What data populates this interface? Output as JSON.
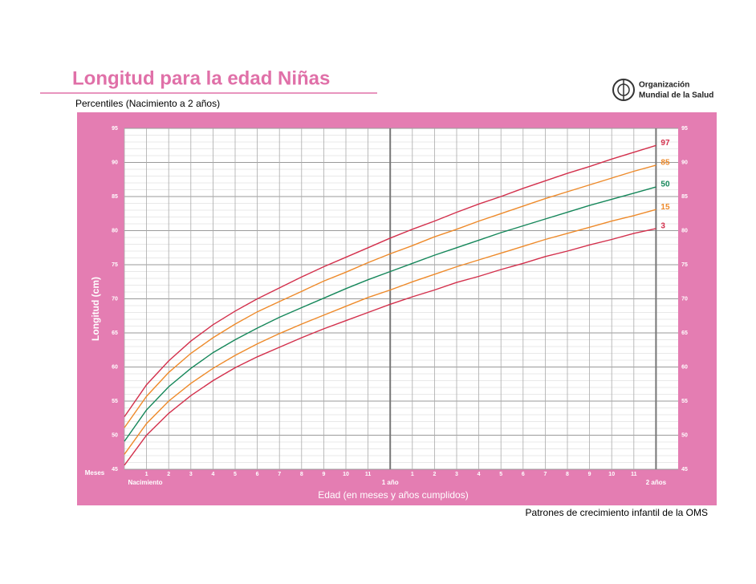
{
  "chart_data": {
    "type": "line",
    "title": "Longitud para la edad Niñas",
    "subtitle": "Percentiles (Nacimiento a 2 años)",
    "organization": [
      "Organización",
      "Mundial de la Salud"
    ],
    "y_label": "Longitud (cm)",
    "x_label": "Edad (en meses y años cumplidos)",
    "x_unit_label": "Meses",
    "footer": "Patrones de crecimiento infantil de la OMS",
    "x": [
      0,
      1,
      2,
      3,
      4,
      5,
      6,
      7,
      8,
      9,
      10,
      11,
      12,
      13,
      14,
      15,
      16,
      17,
      18,
      19,
      20,
      21,
      22,
      23,
      24
    ],
    "xlim": [
      0,
      25
    ],
    "ylim": [
      45,
      95
    ],
    "xticks": [
      {
        "value": 0,
        "label": "Nacimiento"
      },
      1,
      2,
      3,
      4,
      5,
      6,
      7,
      8,
      9,
      10,
      11,
      {
        "value": 12,
        "label": "1 año"
      },
      {
        "value": 13,
        "label": "1"
      },
      {
        "value": 14,
        "label": "2"
      },
      {
        "value": 15,
        "label": "3"
      },
      {
        "value": 16,
        "label": "4"
      },
      {
        "value": 17,
        "label": "5"
      },
      {
        "value": 18,
        "label": "6"
      },
      {
        "value": 19,
        "label": "7"
      },
      {
        "value": 20,
        "label": "8"
      },
      {
        "value": 21,
        "label": "9"
      },
      {
        "value": 22,
        "label": "10"
      },
      {
        "value": 23,
        "label": "11"
      },
      {
        "value": 24,
        "label": "2 años"
      }
    ],
    "yticks": [
      45,
      50,
      55,
      60,
      65,
      70,
      75,
      80,
      85,
      90,
      95
    ],
    "yminorticks": [
      46,
      47,
      48,
      49,
      51,
      52,
      53,
      54,
      56,
      57,
      58,
      59,
      61,
      62,
      63,
      64,
      66,
      67,
      68,
      69,
      71,
      72,
      73,
      74,
      76,
      77,
      78,
      79,
      81,
      82,
      83,
      84,
      86,
      87,
      88,
      89,
      91,
      92,
      93,
      94
    ],
    "grid": true,
    "series": [
      {
        "name": "97",
        "color": "#d3304c",
        "values": [
          52.7,
          57.4,
          60.9,
          63.8,
          66.2,
          68.2,
          70.0,
          71.6,
          73.2,
          74.7,
          76.1,
          77.5,
          78.9,
          80.2,
          81.4,
          82.7,
          83.9,
          85.0,
          86.2,
          87.3,
          88.4,
          89.4,
          90.5,
          91.5,
          92.5
        ]
      },
      {
        "name": "85",
        "color": "#ee8a2a",
        "values": [
          51.1,
          55.7,
          59.2,
          62.0,
          64.3,
          66.3,
          68.1,
          69.6,
          71.1,
          72.6,
          73.9,
          75.3,
          76.6,
          77.8,
          79.1,
          80.2,
          81.4,
          82.5,
          83.6,
          84.7,
          85.7,
          86.7,
          87.7,
          88.7,
          89.6
        ]
      },
      {
        "name": "50",
        "color": "#15875a",
        "values": [
          49.1,
          53.7,
          57.1,
          59.8,
          62.1,
          64.0,
          65.7,
          67.3,
          68.7,
          70.1,
          71.5,
          72.8,
          74.0,
          75.2,
          76.4,
          77.5,
          78.6,
          79.7,
          80.7,
          81.7,
          82.7,
          83.7,
          84.6,
          85.5,
          86.4
        ]
      },
      {
        "name": "15",
        "color": "#ee8a2a",
        "values": [
          47.2,
          51.7,
          55.0,
          57.6,
          59.8,
          61.7,
          63.4,
          64.9,
          66.3,
          67.6,
          68.9,
          70.2,
          71.3,
          72.5,
          73.6,
          74.7,
          75.7,
          76.7,
          77.7,
          78.7,
          79.6,
          80.5,
          81.4,
          82.2,
          83.1
        ]
      },
      {
        "name": "3",
        "color": "#d3304c",
        "values": [
          45.6,
          50.0,
          53.2,
          55.8,
          58.0,
          59.9,
          61.5,
          62.9,
          64.3,
          65.6,
          66.8,
          68.0,
          69.2,
          70.3,
          71.3,
          72.4,
          73.3,
          74.3,
          75.2,
          76.2,
          77.0,
          77.9,
          78.7,
          79.6,
          80.3
        ]
      }
    ]
  }
}
